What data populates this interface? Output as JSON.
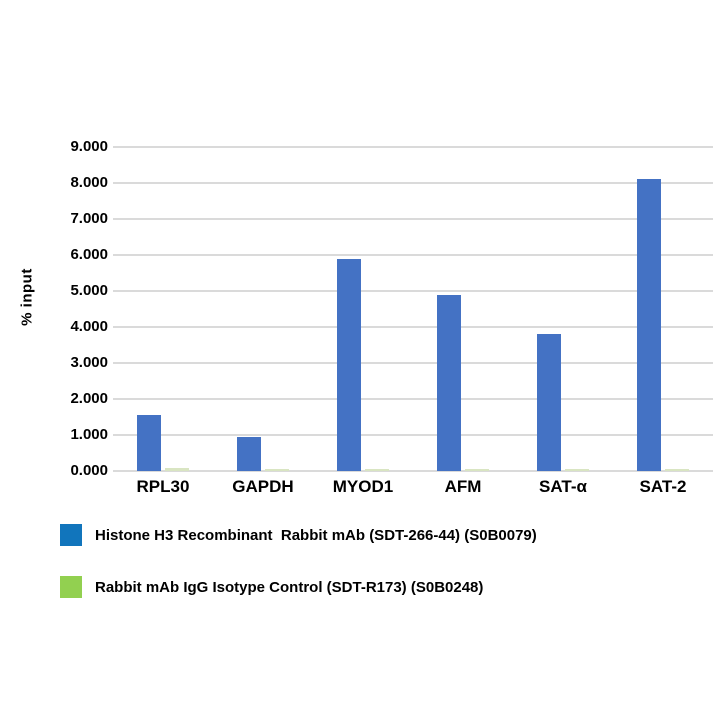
{
  "chart_data": {
    "type": "bar",
    "title": "",
    "ylabel": "% input",
    "xlabel": "",
    "ylim": [
      0,
      9
    ],
    "ytick_step": 1,
    "ytick_decimals": 3,
    "grid": true,
    "legend_position": "bottom-left",
    "categories": [
      "RPL30",
      "GAPDH",
      "MYOD1",
      "AFM",
      "SAT-α",
      "SAT-2"
    ],
    "series": [
      {
        "name": "Histone H3 Recombinant  Rabbit mAb (SDT-266-44) (S0B0079)",
        "short_id": "histone-h3-mab",
        "bar_color": "#4472c4",
        "legend_color": "#1175bc",
        "values": [
          1.55,
          0.95,
          5.9,
          4.9,
          3.8,
          8.1
        ]
      },
      {
        "name": "Rabbit mAb IgG Isotype Control (SDT-R173) (S0B0248)",
        "short_id": "igg-isotype-control",
        "bar_color": "#d9e5c2",
        "legend_color": "#92d050",
        "values": [
          0.07,
          0.05,
          0.05,
          0.05,
          0.06,
          0.05
        ]
      }
    ]
  }
}
